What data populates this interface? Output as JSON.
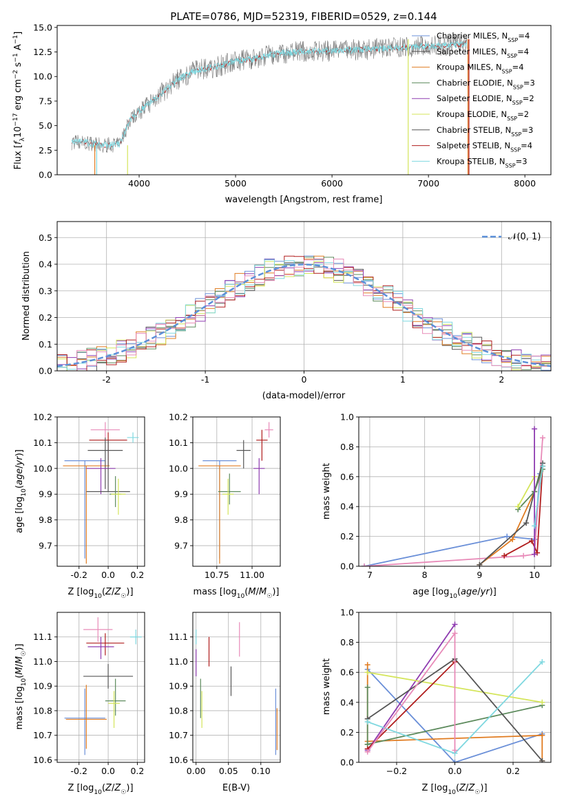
{
  "title": "PLATE=0786, MJD=52319, FIBERID=0529, z=0.144",
  "colors": {
    "Chabrier MILES": "#6a8fd8",
    "Salpeter MILES": "#555555",
    "Kroupa MILES": "#e07b20",
    "Chabrier ELODIE": "#5c8a5c",
    "Salpeter ELODIE": "#8e3bb0",
    "Kroupa ELODIE": "#d4e55a",
    "Chabrier STELIB": "#555555",
    "Salpeter STELIB": "#b01c1c",
    "Kroupa STELIB": "#7fd8e0",
    "pink": "#e88ab8",
    "data": "#7a7a7a",
    "norm": "#5b8fd8"
  },
  "chart_data": [
    {
      "panel": "spectrum",
      "type": "line",
      "title": "PLATE=0786, MJD=52319, FIBERID=0529, z=0.144",
      "xlabel": "wavelength [Angstrom, rest frame]",
      "ylabel": "Flux [fλ10⁻¹⁷ erg cm⁻² s⁻¹ A⁻¹]",
      "xlim": [
        3150,
        8270
      ],
      "ylim": [
        0,
        15.2
      ],
      "xticks": [
        4000,
        5000,
        6000,
        7000,
        8000
      ],
      "yticks": [
        0.0,
        2.5,
        5.0,
        7.5,
        10.0,
        12.5,
        15.0
      ],
      "legend_position": "top-right",
      "legend": [
        "Chabrier MILES, N_SSP=4",
        "Salpeter MILES, N_SSP=4",
        "Kroupa MILES, N_SSP=4",
        "Chabrier ELODIE, N_SSP=3",
        "Salpeter ELODIE, N_SSP=2",
        "Kroupa ELODIE, N_SSP=2",
        "Chabrier STELIB, N_SSP=3",
        "Salpeter STELIB, N_SSP=4",
        "Kroupa STELIB, N_SSP=3"
      ],
      "continuum_x": [
        3300,
        3400,
        3600,
        3800,
        3900,
        4000,
        4200,
        4400,
        4600,
        4800,
        5000,
        5200,
        5400,
        5600,
        5800,
        6000,
        6200,
        6400,
        6600,
        6800,
        7000,
        7200,
        7400
      ],
      "continuum_y": [
        3.3,
        3.4,
        3.0,
        3.1,
        5.5,
        6.5,
        8.0,
        9.7,
        10.7,
        11.0,
        11.6,
        11.8,
        12.3,
        12.5,
        12.6,
        12.6,
        12.7,
        12.8,
        12.9,
        13.0,
        13.1,
        13.2,
        13.3
      ]
    },
    {
      "panel": "residual-histogram",
      "type": "line",
      "xlabel": "(data-model)/error",
      "ylabel": "Normed distribution",
      "xlim": [
        -2.5,
        2.5
      ],
      "ylim": [
        0,
        0.56
      ],
      "xticks": [
        -2,
        -1,
        0,
        1,
        2
      ],
      "yticks": [
        0.0,
        0.1,
        0.2,
        0.3,
        0.4,
        0.5
      ],
      "legend": [
        "𝒩(0, 1)"
      ],
      "legend_position": "top-right",
      "bin_width": 0.1,
      "histogram_mean_curve": "gaussian N(0,1)"
    },
    {
      "panel": "age-vs-Z",
      "type": "scatter",
      "xlabel": "Z [log10(Z/Z☉)]",
      "ylabel": "age  [log10(age/yr)]",
      "xlim": [
        -0.35,
        0.25
      ],
      "ylim": [
        9.62,
        10.2
      ],
      "xticks": [
        -0.2,
        0.0,
        0.2
      ],
      "yticks": [
        9.7,
        9.8,
        9.9,
        10.0,
        10.1,
        10.2
      ],
      "points": [
        {
          "model": "Chabrier MILES",
          "x": -0.16,
          "xerr": 0.14,
          "y": 10.03,
          "yerr": [
            0.38,
            0.0
          ]
        },
        {
          "model": "Kroupa MILES",
          "x": -0.15,
          "xerr": 0.16,
          "y": 10.01,
          "yerr": [
            0.38,
            0.0
          ]
        },
        {
          "model": "pink",
          "x": -0.02,
          "xerr": 0.1,
          "y": 10.15,
          "yerr": [
            0.03,
            0.03
          ]
        },
        {
          "model": "Salpeter STELIB",
          "x": 0.0,
          "xerr": 0.13,
          "y": 10.11,
          "yerr": [
            0.1,
            0.03
          ]
        },
        {
          "model": "Chabrier STELIB",
          "x": -0.02,
          "xerr": 0.12,
          "y": 10.07,
          "yerr": [
            0.15,
            0.05
          ]
        },
        {
          "model": "Salpeter ELODIE",
          "x": -0.05,
          "xerr": 0.1,
          "y": 10.0,
          "yerr": [
            0.1,
            0.04
          ]
        },
        {
          "model": "Salpeter MILES",
          "x": 0.0,
          "xerr": 0.15,
          "y": 9.91,
          "yerr": [
            0.0,
            0.2
          ]
        },
        {
          "model": "Chabrier ELODIE",
          "x": 0.05,
          "xerr": 0.04,
          "y": 9.9,
          "yerr": [
            0.05,
            0.07
          ]
        },
        {
          "model": "Kroupa ELODIE",
          "x": 0.07,
          "xerr": 0.05,
          "y": 9.9,
          "yerr": [
            0.08,
            0.06
          ]
        },
        {
          "model": "Kroupa STELIB",
          "x": 0.17,
          "xerr": 0.04,
          "y": 10.12,
          "yerr": [
            0.02,
            0.02
          ]
        }
      ]
    },
    {
      "panel": "age-vs-mass",
      "type": "scatter",
      "xlabel": "mass [log10(M/M☉)]",
      "xlim": [
        10.58,
        11.2
      ],
      "ylim": [
        9.62,
        10.2
      ],
      "xticks": [
        10.75,
        11.0
      ],
      "yticks": [
        9.7,
        9.8,
        9.9,
        10.0,
        10.1,
        10.2
      ],
      "points": [
        {
          "model": "Chabrier MILES",
          "x": 10.77,
          "xerr": 0.12,
          "y": 10.03,
          "yerr": [
            0.38,
            0.0
          ]
        },
        {
          "model": "Kroupa MILES",
          "x": 10.77,
          "xerr": 0.15,
          "y": 10.01,
          "yerr": [
            0.38,
            0.0
          ]
        },
        {
          "model": "Chabrier STELIB",
          "x": 10.94,
          "xerr": 0.05,
          "y": 10.07,
          "yerr": [
            0.07,
            0.04
          ]
        },
        {
          "model": "Salpeter STELIB",
          "x": 11.07,
          "xerr": 0.04,
          "y": 10.11,
          "yerr": [
            0.08,
            0.04
          ]
        },
        {
          "model": "pink",
          "x": 11.12,
          "xerr": 0.03,
          "y": 10.15,
          "yerr": [
            0.03,
            0.03
          ]
        },
        {
          "model": "Salpeter ELODIE",
          "x": 11.05,
          "xerr": 0.04,
          "y": 10.0,
          "yerr": [
            0.1,
            0.04
          ]
        },
        {
          "model": "Chabrier ELODIE",
          "x": 10.84,
          "xerr": 0.08,
          "y": 9.91,
          "yerr": [
            0.05,
            0.07
          ]
        },
        {
          "model": "Kroupa ELODIE",
          "x": 10.83,
          "xerr": 0.04,
          "y": 9.9,
          "yerr": [
            0.08,
            0.06
          ]
        }
      ]
    },
    {
      "panel": "mass-weight-vs-age",
      "type": "line",
      "xlabel": "age  [log10(age/yr)]",
      "ylabel": "mass weight",
      "xlim": [
        6.8,
        10.3
      ],
      "ylim": [
        0,
        1.0
      ],
      "xticks": [
        7,
        8,
        9,
        10
      ],
      "yticks": [
        0.0,
        0.2,
        0.4,
        0.6,
        0.8,
        1.0
      ],
      "series": [
        {
          "model": "Chabrier MILES",
          "x": [
            6.9,
            9.5,
            10.0,
            10.1
          ],
          "y": [
            0.0,
            0.2,
            0.18,
            0.62
          ]
        },
        {
          "model": "pink",
          "x": [
            6.9,
            9.8,
            10.0,
            10.15
          ],
          "y": [
            0.0,
            0.07,
            0.08,
            0.86
          ]
        },
        {
          "model": "Kroupa MILES",
          "x": [
            9.0,
            9.6,
            10.0,
            10.15
          ],
          "y": [
            0.01,
            0.18,
            0.5,
            0.67
          ]
        },
        {
          "model": "Salpeter STELIB",
          "x": [
            9.45,
            9.95,
            10.05,
            10.15
          ],
          "y": [
            0.07,
            0.17,
            0.09,
            0.67
          ]
        },
        {
          "model": "Chabrier STELIB",
          "x": [
            9.0,
            9.85,
            10.0,
            10.15
          ],
          "y": [
            0.01,
            0.29,
            0.5,
            0.69
          ]
        },
        {
          "model": "Chabrier ELODIE",
          "x": [
            9.7,
            10.0,
            10.15
          ],
          "y": [
            0.38,
            0.5,
            0.65
          ]
        },
        {
          "model": "Kroupa ELODIE",
          "x": [
            9.7,
            10.0
          ],
          "y": [
            0.4,
            0.6
          ]
        },
        {
          "model": "Salpeter ELODIE",
          "x": [
            10.0,
            10.0
          ],
          "y": [
            0.08,
            0.92
          ]
        },
        {
          "model": "Kroupa STELIB",
          "x": [
            10.0,
            10.15
          ],
          "y": [
            0.27,
            0.67
          ]
        }
      ]
    },
    {
      "panel": "mass-vs-Z",
      "type": "scatter",
      "xlabel": "Z [log10(Z/Z☉)]",
      "ylabel": "mass [log10(M/M☉)]",
      "xlim": [
        -0.35,
        0.25
      ],
      "ylim": [
        10.59,
        11.2
      ],
      "xticks": [
        -0.2,
        0.0,
        0.2
      ],
      "yticks": [
        10.6,
        10.7,
        10.8,
        10.9,
        11.0,
        11.1
      ],
      "points": [
        {
          "model": "Chabrier MILES",
          "x": -0.16,
          "xerr": 0.14,
          "y": 10.77,
          "yerr": [
            0.15,
            0.12
          ]
        },
        {
          "model": "Kroupa MILES",
          "x": -0.15,
          "xerr": 0.14,
          "y": 10.765,
          "yerr": [
            0.12,
            0.14
          ]
        },
        {
          "model": "pink",
          "x": -0.07,
          "xerr": 0.1,
          "y": 11.13,
          "yerr": [
            0.05,
            0.05
          ]
        },
        {
          "model": "Salpeter STELIB",
          "x": -0.02,
          "xerr": 0.13,
          "y": 11.075,
          "yerr": [
            0.05,
            0.04
          ]
        },
        {
          "model": "Salpeter ELODIE",
          "x": -0.05,
          "xerr": 0.09,
          "y": 11.06,
          "yerr": [
            0.05,
            0.04
          ]
        },
        {
          "model": "Chabrier STELIB",
          "x": 0.0,
          "xerr": 0.17,
          "y": 10.94,
          "yerr": [
            0.05,
            0.05
          ]
        },
        {
          "model": "Chabrier ELODIE",
          "x": 0.05,
          "xerr": 0.07,
          "y": 10.84,
          "yerr": [
            0.06,
            0.09
          ]
        },
        {
          "model": "Kroupa ELODIE",
          "x": 0.04,
          "xerr": 0.04,
          "y": 10.83,
          "yerr": [
            0.1,
            0.05
          ]
        },
        {
          "model": "Kroupa STELIB",
          "x": 0.19,
          "xerr": 0.04,
          "y": 11.1,
          "yerr": [
            0.03,
            0.03
          ]
        }
      ]
    },
    {
      "panel": "mass-vs-EBV",
      "type": "scatter",
      "xlabel": "E(B-V)",
      "xlim": [
        -0.005,
        0.13
      ],
      "ylim": [
        10.59,
        11.2
      ],
      "xticks": [
        0.0,
        0.05,
        0.1
      ],
      "yticks": [
        10.6,
        10.7,
        10.8,
        10.9,
        11.0,
        11.1
      ],
      "points": [
        {
          "model": "Kroupa STELIB",
          "x": 0.0,
          "y": 11.1,
          "yerr": [
            0.03,
            0.03
          ]
        },
        {
          "model": "Salpeter ELODIE",
          "x": 0.0,
          "y": 11.0,
          "yerr": [
            0.06,
            0.05
          ]
        },
        {
          "model": "Chabrier ELODIE",
          "x": 0.007,
          "y": 10.85,
          "yerr": [
            0.08,
            0.08
          ]
        },
        {
          "model": "Kroupa ELODIE",
          "x": 0.009,
          "y": 10.83,
          "yerr": [
            0.1,
            0.05
          ]
        },
        {
          "model": "Salpeter STELIB",
          "x": 0.02,
          "y": 11.04,
          "yerr": [
            0.06,
            0.06
          ]
        },
        {
          "model": "Chabrier STELIB",
          "x": 0.054,
          "y": 10.92,
          "yerr": [
            0.06,
            0.06
          ]
        },
        {
          "model": "pink",
          "x": 0.067,
          "y": 11.09,
          "yerr": [
            0.07,
            0.07
          ]
        },
        {
          "model": "Chabrier MILES",
          "x": 0.123,
          "y": 10.77,
          "yerr": [
            0.15,
            0.12
          ]
        },
        {
          "model": "Kroupa MILES",
          "x": 0.125,
          "y": 10.74,
          "yerr": [
            0.1,
            0.07
          ]
        }
      ]
    },
    {
      "panel": "mass-weight-vs-Z",
      "type": "line",
      "xlabel": "Z [log10(Z/Z☉)]",
      "ylabel": "mass weight",
      "xlim": [
        -0.33,
        0.33
      ],
      "ylim": [
        0,
        1.0
      ],
      "xticks": [
        -0.2,
        0.0,
        0.2
      ],
      "yticks": [
        0.0,
        0.2,
        0.4,
        0.6,
        0.8,
        1.0
      ],
      "series": [
        {
          "model": "Chabrier MILES",
          "x": [
            -0.3,
            0.0,
            0.3
          ],
          "y": [
            0.62,
            0.0,
            0.19
          ]
        },
        {
          "model": "Kroupa MILES",
          "x": [
            -0.3,
            -0.3,
            0.3,
            0.3
          ],
          "y": [
            0.65,
            0.14,
            0.18,
            0.01
          ]
        },
        {
          "model": "Chabrier ELODIE",
          "x": [
            -0.3,
            0.3
          ],
          "y": [
            0.12,
            0.38
          ]
        },
        {
          "model": "Chabrier ELODIE",
          "x": [
            -0.3,
            -0.3
          ],
          "y": [
            0.5,
            0.12
          ]
        },
        {
          "model": "Salpeter ELODIE",
          "x": [
            -0.3,
            0.0
          ],
          "y": [
            0.08,
            0.92
          ]
        },
        {
          "model": "Kroupa ELODIE",
          "x": [
            -0.3,
            0.3
          ],
          "y": [
            0.6,
            0.4
          ]
        },
        {
          "model": "Chabrier STELIB",
          "x": [
            -0.3,
            0.0,
            0.3
          ],
          "y": [
            0.29,
            0.69,
            0.01
          ]
        },
        {
          "model": "Salpeter STELIB",
          "x": [
            -0.3,
            0.0
          ],
          "y": [
            0.09,
            0.67
          ]
        },
        {
          "model": "Kroupa STELIB",
          "x": [
            -0.3,
            0.0,
            0.3
          ],
          "y": [
            0.27,
            0.06,
            0.67
          ]
        },
        {
          "model": "pink",
          "x": [
            -0.3,
            0.0,
            0.0
          ],
          "y": [
            0.07,
            0.86,
            0.08
          ]
        }
      ]
    }
  ]
}
